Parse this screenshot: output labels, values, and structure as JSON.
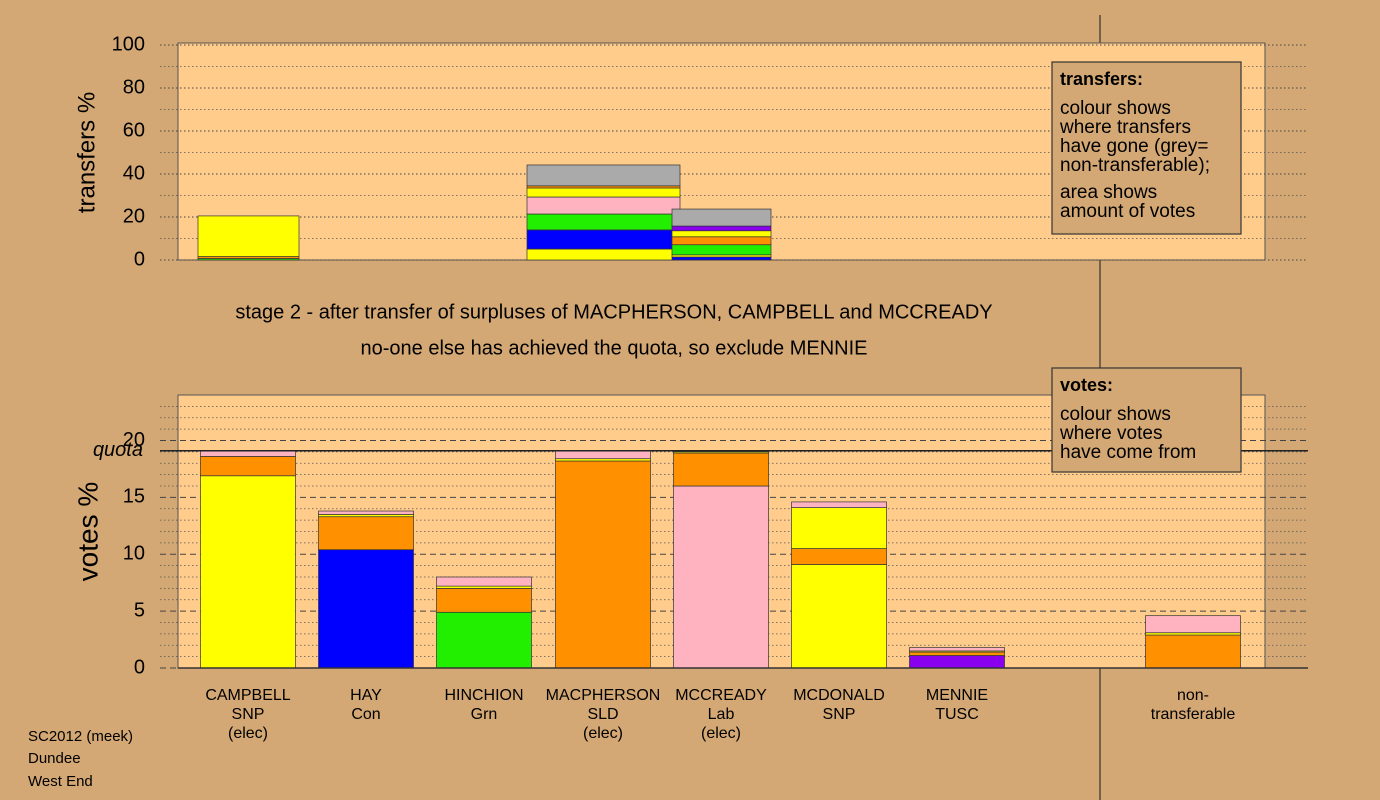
{
  "title": "stage 2 - after transfer of surpluses of MACPHERSON, CAMPBELL and MCCREADY",
  "subtitle": "no-one else has achieved the quota, so exclude MENNIE",
  "footer": [
    "SC2012 (meek)",
    "Dundee",
    "West End"
  ],
  "chart_data": [
    {
      "type": "stacked-bar",
      "ylabel": "transfers %",
      "ylim": [
        0,
        100
      ],
      "yticks": [
        0,
        20,
        40,
        60,
        80,
        100
      ],
      "minor_yticks": [
        10,
        30,
        50,
        70,
        90
      ],
      "major_grid_style": "dotted",
      "bars": [
        {
          "segments": [
            {
              "color": "#22ee00",
              "value": 0.7
            },
            {
              "color": "#ff9000",
              "value": 0.9
            },
            {
              "color": "#ffff00",
              "value": 18.9
            }
          ]
        },
        {
          "segments": [
            {
              "color": "#ffff00",
              "value": 5.1
            },
            {
              "color": "#0000ff",
              "value": 8.9
            },
            {
              "color": "#22ee00",
              "value": 7.4
            },
            {
              "color": "#ffb3c1",
              "value": 7.9
            },
            {
              "color": "#ffff00",
              "value": 4.2
            },
            {
              "color": "#ff9000",
              "value": 1.0
            },
            {
              "color": "#aaaaaa",
              "value": 9.7
            }
          ]
        },
        {
          "segments": [
            {
              "color": "#0000ff",
              "value": 1.4
            },
            {
              "color": "#ffff00",
              "value": 1.0
            },
            {
              "color": "#22ee00",
              "value": 4.7
            },
            {
              "color": "#ff9000",
              "value": 3.7
            },
            {
              "color": "#ffff00",
              "value": 2.8
            },
            {
              "color": "#8800ee",
              "value": 2.2
            },
            {
              "color": "#aaaaaa",
              "value": 7.9
            }
          ]
        }
      ],
      "legend": {
        "title": "transfers:",
        "paragraphs": [
          [
            "colour shows",
            "where transfers",
            "have gone (grey=",
            "non-transferable);"
          ],
          [
            "area shows",
            "amount of votes"
          ]
        ]
      }
    },
    {
      "type": "stacked-bar",
      "ylabel": "votes %",
      "ylim": [
        0,
        24
      ],
      "yticks": [
        0,
        5,
        10,
        15,
        20
      ],
      "minor_yticks": [
        1,
        2,
        3,
        4,
        6,
        7,
        8,
        9,
        11,
        12,
        13,
        14,
        16,
        17,
        18,
        19,
        21,
        22,
        23
      ],
      "major_grid_style": "dashed",
      "quota": {
        "label": "quota",
        "value": 19.1
      },
      "categories": [
        [
          "CAMPBELL",
          "SNP",
          "(elec)"
        ],
        [
          "HAY",
          "Con"
        ],
        [
          "HINCHION",
          "Grn"
        ],
        [
          "MACPHERSON",
          "SLD",
          "(elec)"
        ],
        [
          "MCCREADY",
          "Lab",
          "(elec)"
        ],
        [
          "MCDONALD",
          "SNP"
        ],
        [
          "MENNIE",
          "TUSC"
        ],
        [
          "non-",
          "transferable"
        ]
      ],
      "bars": [
        {
          "segments": [
            {
              "color": "#ffff00",
              "value": 16.9
            },
            {
              "color": "#ff9000",
              "value": 1.7
            },
            {
              "color": "#ffb3c1",
              "value": 0.5
            }
          ]
        },
        {
          "segments": [
            {
              "color": "#0000ff",
              "value": 10.4
            },
            {
              "color": "#ff9000",
              "value": 2.9
            },
            {
              "color": "#ffff00",
              "value": 0.2
            },
            {
              "color": "#ffb3c1",
              "value": 0.3
            }
          ]
        },
        {
          "segments": [
            {
              "color": "#22ee00",
              "value": 4.9
            },
            {
              "color": "#ff9000",
              "value": 2.1
            },
            {
              "color": "#ffff00",
              "value": 0.2
            },
            {
              "color": "#ffb3c1",
              "value": 0.8
            }
          ]
        },
        {
          "segments": [
            {
              "color": "#ff9000",
              "value": 18.2
            },
            {
              "color": "#ffff00",
              "value": 0.2
            },
            {
              "color": "#ffb3c1",
              "value": 0.7
            }
          ]
        },
        {
          "segments": [
            {
              "color": "#ffb3c1",
              "value": 16.0
            },
            {
              "color": "#ff9000",
              "value": 2.9
            },
            {
              "color": "#ffff00",
              "value": 0.1
            }
          ]
        },
        {
          "segments": [
            {
              "color": "#ffff00",
              "value": 9.1
            },
            {
              "color": "#ff9000",
              "value": 1.4
            },
            {
              "color": "#ffff00",
              "value": 3.6
            },
            {
              "color": "#ffb3c1",
              "value": 0.5
            }
          ]
        },
        {
          "segments": [
            {
              "color": "#8800ee",
              "value": 1.1
            },
            {
              "color": "#ff9000",
              "value": 0.3
            },
            {
              "color": "#ffff00",
              "value": 0.1
            },
            {
              "color": "#ffb3c1",
              "value": 0.3
            }
          ]
        },
        {
          "segments": [
            {
              "color": "#ff9000",
              "value": 2.9
            },
            {
              "color": "#ffff00",
              "value": 0.2
            },
            {
              "color": "#ffb3c1",
              "value": 1.5
            }
          ]
        }
      ],
      "legend": {
        "title": "votes:",
        "paragraphs": [
          [
            "colour shows",
            "where votes",
            "have come from"
          ]
        ]
      }
    }
  ]
}
